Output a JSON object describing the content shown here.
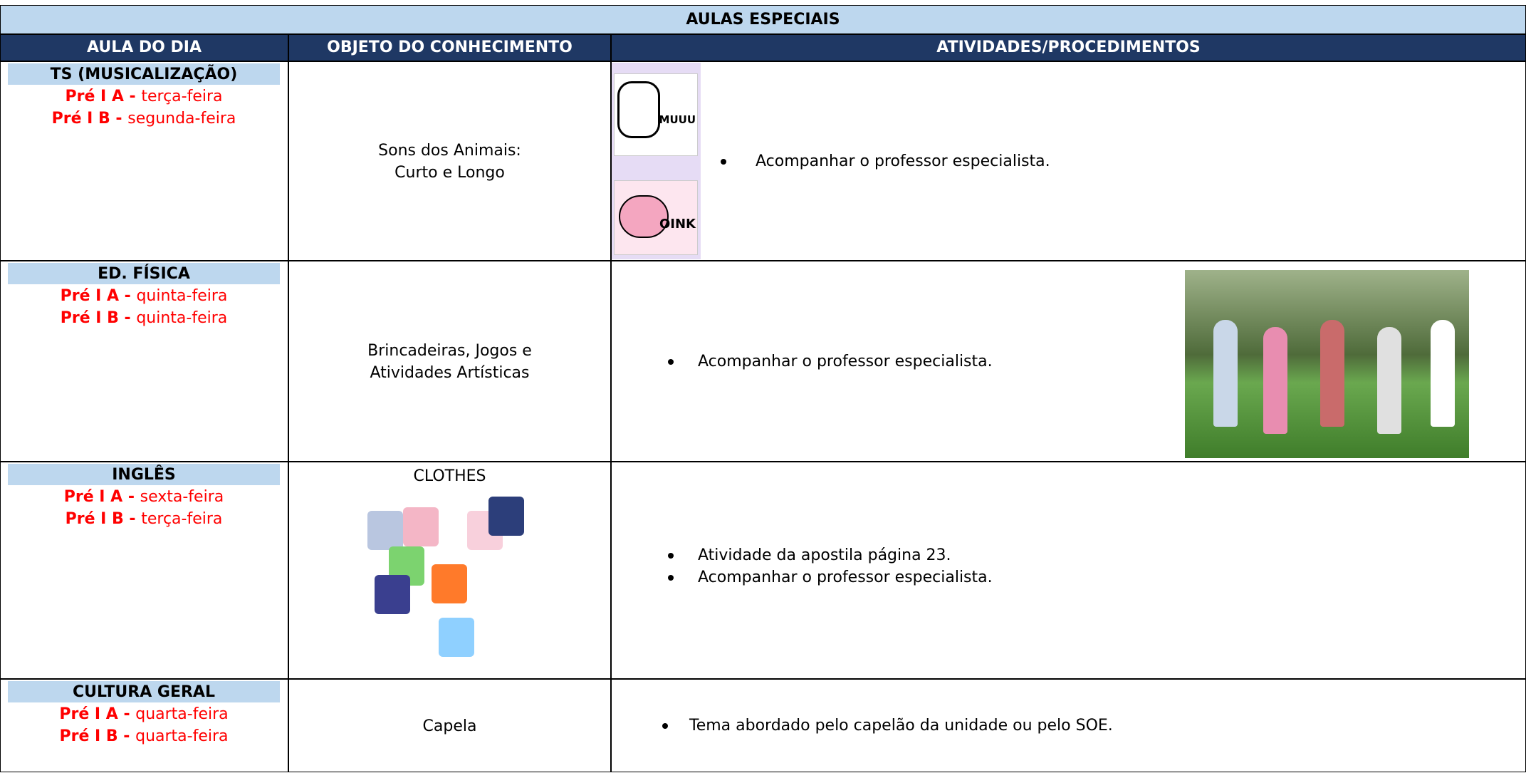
{
  "table": {
    "title": "AULAS ESPECIAIS",
    "headers": [
      "AULA DO DIA",
      "OBJETO DO CONHECIMENTO",
      "ATIVIDADES/PROCEDIMENTOS"
    ],
    "rows": [
      {
        "subject": "TS (MUSICALIZAÇÃO)",
        "classes": [
          {
            "label": "Pré I A -",
            "day": "terça-feira"
          },
          {
            "label": "Pré I B -",
            "day": "segunda-feira"
          }
        ],
        "object": [
          "Sons dos Animais:",
          "Curto e Longo"
        ],
        "image_texts": [
          "MUUU",
          "OINK"
        ],
        "activities": [
          "Acompanhar o professor especialista."
        ]
      },
      {
        "subject": "ED. FÍSICA",
        "classes": [
          {
            "label": "Pré I A -",
            "day": "quinta-feira"
          },
          {
            "label": "Pré I B -",
            "day": "quinta-feira"
          }
        ],
        "object": [
          "Brincadeiras, Jogos e Atividades Artísticas"
        ],
        "activities": [
          "Acompanhar o professor especialista."
        ]
      },
      {
        "subject": "INGLÊS",
        "classes": [
          {
            "label": "Pré I A -",
            "day": "sexta-feira"
          },
          {
            "label": "Pré I B -",
            "day": "terça-feira"
          }
        ],
        "object": [
          "CLOTHES"
        ],
        "activities": [
          "Atividade da apostila página 23.",
          "Acompanhar o professor especialista."
        ]
      },
      {
        "subject": "CULTURA GERAL",
        "classes": [
          {
            "label": "Pré I A -",
            "day": "quarta-feira"
          },
          {
            "label": "Pré I B -",
            "day": "quarta-feira"
          }
        ],
        "object": [
          "Capela"
        ],
        "activities": [
          "Tema abordado pelo capelão da unidade ou pelo SOE."
        ]
      }
    ]
  }
}
